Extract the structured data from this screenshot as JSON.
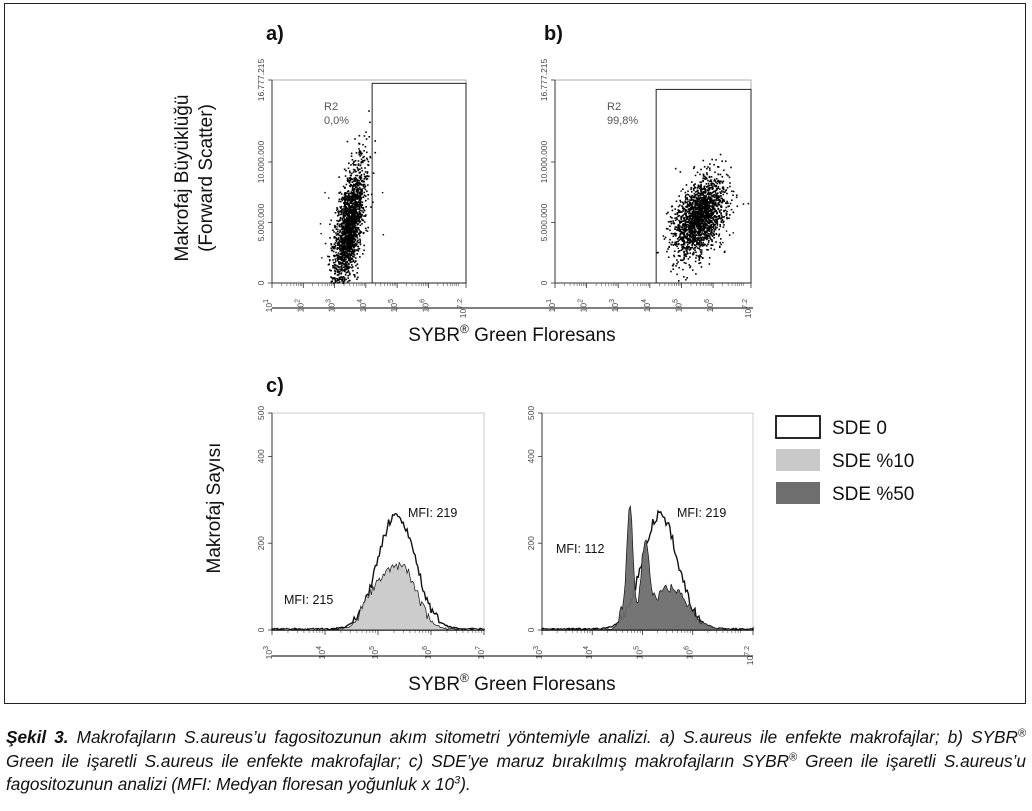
{
  "panel_labels": {
    "a": "a)",
    "b": "b)",
    "c": "c)"
  },
  "scatter_ylabel_line1": "Makrofaj Büyüklüğü",
  "scatter_ylabel_line2": "(Forward Scatter)",
  "xlabel_prefix": "SYBR",
  "xlabel_reg": "®",
  "xlabel_suffix": " Green Floresans",
  "hist_ylabel": "Makrofaj Sayısı",
  "colors": {
    "sde0": "#ffffff",
    "sde10": "#c9c9c9",
    "sde50": "#6e6e6e",
    "ink": "#111111",
    "axis": "#333333"
  },
  "chart_data": [
    {
      "type": "scatter",
      "panel": "a)",
      "y_ticks": [
        "0",
        "5.000.000",
        "10.000.000",
        "16.777.215"
      ],
      "y_tick_values": [
        0,
        5000000,
        10000000,
        16777215
      ],
      "ylim": [
        0,
        16777215
      ],
      "x_ticks": [
        "10^1",
        "10^2",
        "10^3",
        "10^4",
        "10^5",
        "10^6",
        "10^7.2"
      ],
      "xlim_log10": [
        1,
        7.2
      ],
      "gate": {
        "label": "R2",
        "percent": "0,0%",
        "x_from_log10": 4.2,
        "x_to_log10": 7.2,
        "y_to": 16500000
      },
      "cloud": {
        "x_center_log10": 3.45,
        "y_center": 4800000,
        "x_spread_log10": 0.25,
        "y_spread": 2000000,
        "tilt": 3300000,
        "points": 1800
      }
    },
    {
      "type": "scatter",
      "panel": "b)",
      "y_ticks": [
        "0",
        "5.000.000",
        "10.000.000",
        "16.777.215"
      ],
      "y_tick_values": [
        0,
        5000000,
        10000000,
        16777215
      ],
      "ylim": [
        0,
        16777215
      ],
      "x_ticks": [
        "10^1",
        "10^2",
        "10^3",
        "10^4",
        "10^5",
        "10^6",
        "10^7.2"
      ],
      "xlim_log10": [
        1,
        7.2
      ],
      "gate": {
        "label": "R2",
        "percent": "99,8%",
        "x_from_log10": 4.2,
        "x_to_log10": 7.2,
        "y_to": 16000000
      },
      "cloud": {
        "x_center_log10": 5.55,
        "y_center": 5400000,
        "x_spread_log10": 0.42,
        "y_spread": 1500000,
        "tilt": 1400000,
        "points": 1800
      }
    },
    {
      "type": "area",
      "panel": "c-left",
      "y_ticks": [
        "0",
        "200",
        "400",
        "500"
      ],
      "y_tick_values": [
        0,
        200,
        400,
        500
      ],
      "ylim": [
        0,
        500
      ],
      "x_ticks": [
        "10^3",
        "10^4",
        "10^5",
        "10^6",
        "10^7"
      ],
      "xlim_log10": [
        3,
        7
      ],
      "series": [
        {
          "name": "SDE 0",
          "fill": "#ffffff",
          "mfi": "MFI: 219",
          "peaks": [
            [
              5.35,
              265,
              0.35
            ]
          ]
        },
        {
          "name": "SDE %10",
          "fill": "#c9c9c9",
          "mfi": "MFI: 215",
          "peaks": [
            [
              5.45,
              140,
              0.28
            ],
            [
              4.95,
              75,
              0.22
            ],
            [
              4.75,
              15,
              0.05
            ]
          ]
        }
      ]
    },
    {
      "type": "area",
      "panel": "c-right",
      "y_ticks": [
        "0",
        "200",
        "400",
        "500"
      ],
      "y_tick_values": [
        0,
        200,
        400,
        500
      ],
      "ylim": [
        0,
        500
      ],
      "x_ticks": [
        "10^3",
        "10^4",
        "10^5",
        "10^6",
        "10^7.2"
      ],
      "xlim_log10": [
        3,
        7.2
      ],
      "series": [
        {
          "name": "SDE 0",
          "fill": "#ffffff",
          "mfi": "MFI: 219",
          "peaks": [
            [
              5.35,
              265,
              0.35
            ]
          ]
        },
        {
          "name": "SDE %50",
          "fill": "#6e6e6e",
          "mfi": "MFI: 112",
          "peaks": [
            [
              4.75,
              280,
              0.06
            ],
            [
              5.05,
              170,
              0.08
            ],
            [
              5.55,
              95,
              0.35
            ],
            [
              4.6,
              40,
              0.07
            ]
          ]
        }
      ]
    }
  ],
  "legend": [
    {
      "label": "SDE 0",
      "fill": "#ffffff"
    },
    {
      "label": "SDE %10",
      "fill": "#c9c9c9"
    },
    {
      "label": "SDE %50",
      "fill": "#6e6e6e"
    }
  ],
  "caption": {
    "label": "Şekil 3.",
    "t1": " Makrofajların S.aureus’u fagositozunun akım sitometri yöntemiyle analizi. a) S.aureus ile enfekte makrofajlar; b) SYBR",
    "reg1": "®",
    "t2": " Green ile işaretli S.aureus ile enfekte makrofajlar; c) SDE’ye maruz bırakılmış makrofajların SYBR",
    "reg2": "®",
    "t3": " Green ile işaretli S.aureus’u fagositozunun analizi (MFI: Medyan floresan yoğunluk x 10",
    "sup": "3",
    "t4": ")."
  }
}
